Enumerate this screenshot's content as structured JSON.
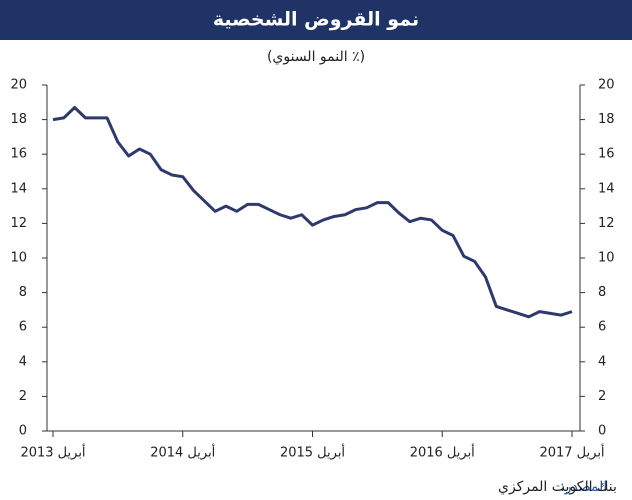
{
  "chart_data": {
    "type": "line",
    "title": "نمو القروض الشخصية",
    "subtitle": "(٪ النمو السنوي)",
    "categories": [
      "أبريل 2013",
      null,
      null,
      null,
      null,
      null,
      null,
      null,
      null,
      null,
      null,
      null,
      "أبريل 2014",
      null,
      null,
      null,
      null,
      null,
      null,
      null,
      null,
      null,
      null,
      null,
      "أبريل 2015",
      null,
      null,
      null,
      null,
      null,
      null,
      null,
      null,
      null,
      null,
      null,
      "أبريل 2016",
      null,
      null,
      null,
      null,
      null,
      null,
      null,
      null,
      null,
      null,
      null,
      "أبريل 2017"
    ],
    "series": [
      {
        "color": "#2e3a6e",
        "values": [
          18.0,
          18.1,
          18.7,
          18.1,
          18.1,
          18.1,
          16.7,
          15.9,
          16.3,
          16.0,
          15.1,
          14.8,
          14.7,
          13.9,
          13.3,
          12.7,
          13.0,
          12.7,
          13.1,
          13.1,
          12.8,
          12.5,
          12.3,
          12.5,
          11.9,
          12.2,
          12.4,
          12.5,
          12.8,
          12.9,
          13.2,
          13.2,
          12.6,
          12.1,
          12.3,
          12.2,
          11.6,
          11.3,
          10.1,
          9.8,
          8.9,
          7.2,
          7.0,
          6.8,
          6.6,
          6.9,
          6.8,
          6.7,
          6.9
        ]
      }
    ],
    "ylim": [
      0,
      20
    ],
    "yticks": [
      0,
      2,
      4,
      6,
      8,
      10,
      12,
      14,
      16,
      18,
      20
    ],
    "grid": false,
    "source_label": "المصدر:",
    "source_text": "بنك الكويت المركزي"
  }
}
